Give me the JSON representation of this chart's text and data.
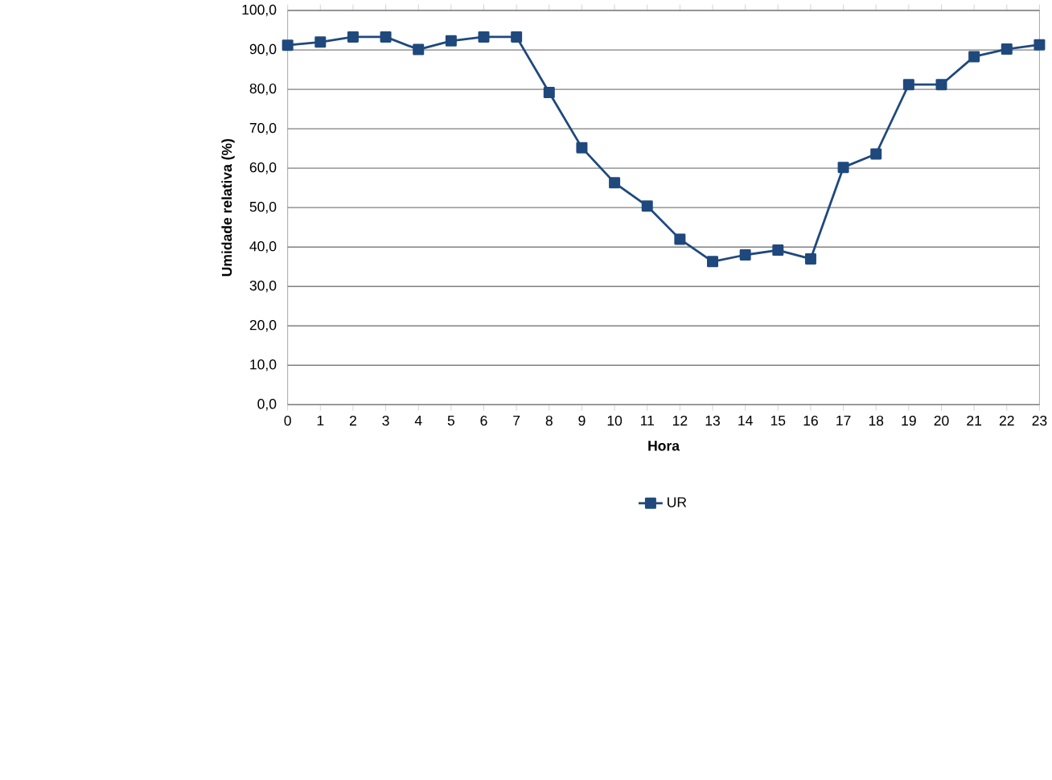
{
  "chart_data": {
    "type": "line",
    "xlabel": "Hora",
    "ylabel": "Umidade relativa (%)",
    "categories": [
      "0",
      "1",
      "2",
      "3",
      "4",
      "5",
      "6",
      "7",
      "8",
      "9",
      "10",
      "11",
      "12",
      "13",
      "14",
      "15",
      "16",
      "17",
      "18",
      "19",
      "20",
      "21",
      "22",
      "23"
    ],
    "series": [
      {
        "name": "UR",
        "color": "#1f497d",
        "values": [
          91.2,
          92.0,
          93.3,
          93.3,
          90.1,
          92.3,
          93.3,
          93.3,
          79.2,
          65.2,
          56.3,
          50.4,
          42.0,
          36.3,
          38.0,
          39.2,
          37.0,
          60.2,
          63.6,
          81.2,
          81.2,
          88.3,
          90.2,
          91.3
        ]
      }
    ],
    "ylim": [
      0,
      100
    ],
    "yticks": [
      {
        "value": 0,
        "label": "0,0"
      },
      {
        "value": 10,
        "label": "10,0"
      },
      {
        "value": 20,
        "label": "20,0"
      },
      {
        "value": 30,
        "label": "30,0"
      },
      {
        "value": 40,
        "label": "40,0"
      },
      {
        "value": 50,
        "label": "50,0"
      },
      {
        "value": 60,
        "label": "60,0"
      },
      {
        "value": 70,
        "label": "70,0"
      },
      {
        "value": 80,
        "label": "80,0"
      },
      {
        "value": 90,
        "label": "90,0"
      },
      {
        "value": 100,
        "label": "100,0"
      }
    ],
    "grid": "y",
    "legend": "bottom",
    "marker": "square",
    "line_style": "solid"
  }
}
